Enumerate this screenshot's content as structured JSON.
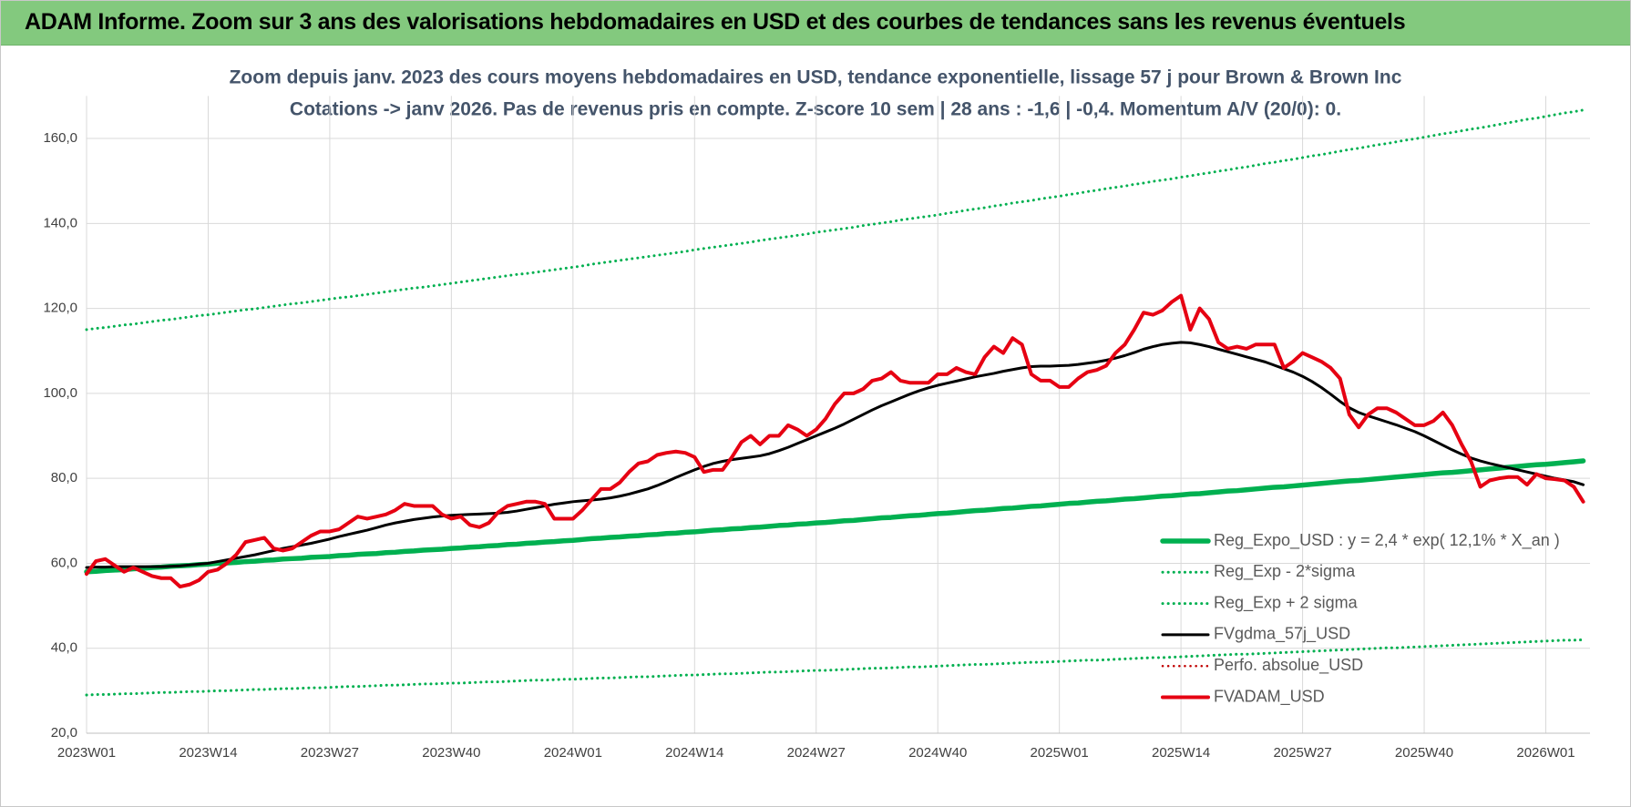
{
  "header": {
    "title": "ADAM Informe. Zoom sur 3 ans des valorisations hebdomadaires en USD et des courbes de tendances sans les revenus éventuels"
  },
  "chart_data": {
    "type": "line",
    "title": "Zoom depuis janv. 2023 des cours moyens hebdomadaires en USD, tendance exponentielle, lissage 57 j pour Brown & Brown Inc",
    "subtitle": "Cotations -> janv 2026. Pas de revenus pris en compte. Z-score 10 sem | 28 ans : -1,6 | -0,4. Momentum A/V (20/0): 0.",
    "categories": [
      "2023W01",
      null,
      null,
      null,
      null,
      null,
      null,
      null,
      null,
      null,
      null,
      null,
      null,
      "2023W14",
      null,
      null,
      null,
      null,
      null,
      null,
      null,
      null,
      null,
      null,
      null,
      null,
      "2023W27",
      null,
      null,
      null,
      null,
      null,
      null,
      null,
      null,
      null,
      null,
      null,
      null,
      "2023W40",
      null,
      null,
      null,
      null,
      null,
      null,
      null,
      null,
      null,
      null,
      null,
      null,
      "2024W01",
      null,
      null,
      null,
      null,
      null,
      null,
      null,
      null,
      null,
      null,
      null,
      null,
      "2024W14",
      null,
      null,
      null,
      null,
      null,
      null,
      null,
      null,
      null,
      null,
      null,
      null,
      "2024W27",
      null,
      null,
      null,
      null,
      null,
      null,
      null,
      null,
      null,
      null,
      null,
      null,
      "2024W40",
      null,
      null,
      null,
      null,
      null,
      null,
      null,
      null,
      null,
      null,
      null,
      null,
      "2025W01",
      null,
      null,
      null,
      null,
      null,
      null,
      null,
      null,
      null,
      null,
      null,
      null,
      "2025W14",
      null,
      null,
      null,
      null,
      null,
      null,
      null,
      null,
      null,
      null,
      null,
      null,
      "2025W27",
      null,
      null,
      null,
      null,
      null,
      null,
      null,
      null,
      null,
      null,
      null,
      null,
      "2025W40",
      null,
      null,
      null,
      null,
      null,
      null,
      null,
      null,
      null,
      null,
      null,
      null,
      "2026W01",
      null,
      null,
      null,
      null
    ],
    "ylim": [
      20,
      170
    ],
    "yticks": [
      {
        "value": 20,
        "label": "20,0"
      },
      {
        "value": 40,
        "label": "40,0"
      },
      {
        "value": 60,
        "label": "60,0"
      },
      {
        "value": 80,
        "label": "80,0"
      },
      {
        "value": 100,
        "label": "100,0"
      },
      {
        "value": 120,
        "label": "120,0"
      },
      {
        "value": 140,
        "label": "140,0"
      },
      {
        "value": 160,
        "label": "160,0"
      }
    ],
    "grid": true,
    "legend": "lower right",
    "series": [
      {
        "name": "Reg_Expo_USD : y = 2,4 * exp( 12,1% *  X_an )",
        "color": "#00b050",
        "line_style": "solid",
        "values": [
          58.0,
          58.1,
          58.3,
          58.4,
          58.5,
          58.7,
          58.8,
          59.0,
          59.1,
          59.3,
          59.4,
          59.5,
          59.7,
          59.8,
          60.0,
          60.1,
          60.2,
          60.4,
          60.5,
          60.7,
          60.8,
          61.0,
          61.1,
          61.2,
          61.4,
          61.5,
          61.6,
          61.8,
          61.9,
          62.1,
          62.2,
          62.3,
          62.5,
          62.6,
          62.8,
          62.9,
          63.1,
          63.2,
          63.3,
          63.5,
          63.6,
          63.8,
          63.9,
          64.1,
          64.2,
          64.4,
          64.5,
          64.7,
          64.8,
          65.0,
          65.1,
          65.3,
          65.4,
          65.6,
          65.8,
          65.9,
          66.1,
          66.2,
          66.4,
          66.5,
          66.7,
          66.8,
          67.0,
          67.1,
          67.3,
          67.4,
          67.6,
          67.8,
          67.9,
          68.1,
          68.2,
          68.4,
          68.5,
          68.7,
          68.9,
          69.0,
          69.2,
          69.3,
          69.5,
          69.6,
          69.8,
          70.0,
          70.1,
          70.3,
          70.5,
          70.7,
          70.8,
          71.0,
          71.2,
          71.3,
          71.5,
          71.7,
          71.8,
          72.0,
          72.2,
          72.4,
          72.5,
          72.7,
          72.9,
          73.0,
          73.2,
          73.4,
          73.5,
          73.7,
          73.9,
          74.1,
          74.2,
          74.4,
          74.6,
          74.7,
          74.9,
          75.1,
          75.2,
          75.4,
          75.6,
          75.8,
          75.9,
          76.1,
          76.3,
          76.4,
          76.6,
          76.8,
          77.0,
          77.1,
          77.3,
          77.5,
          77.7,
          77.9,
          78.0,
          78.2,
          78.4,
          78.6,
          78.8,
          79.0,
          79.2,
          79.4,
          79.5,
          79.7,
          79.9,
          80.1,
          80.3,
          80.5,
          80.7,
          80.9,
          81.1,
          81.3,
          81.4,
          81.6,
          81.8,
          82.0,
          82.2,
          82.4,
          82.6,
          82.8,
          83.0,
          83.2,
          83.3,
          83.5,
          83.7,
          83.9,
          84.1
        ]
      },
      {
        "name": "Reg_Exp - 2*sigma",
        "color": "#00b050",
        "line_style": "dotted",
        "values": [
          29.0,
          29.1,
          29.1,
          29.2,
          29.3,
          29.3,
          29.4,
          29.5,
          29.6,
          29.6,
          29.7,
          29.8,
          29.8,
          29.9,
          30.0,
          30.0,
          30.1,
          30.2,
          30.3,
          30.3,
          30.4,
          30.5,
          30.5,
          30.6,
          30.7,
          30.7,
          30.8,
          30.9,
          31.0,
          31.0,
          31.1,
          31.2,
          31.3,
          31.3,
          31.4,
          31.5,
          31.6,
          31.6,
          31.7,
          31.8,
          31.8,
          31.9,
          32.0,
          32.1,
          32.1,
          32.2,
          32.3,
          32.4,
          32.5,
          32.5,
          32.6,
          32.7,
          32.7,
          32.8,
          32.9,
          33.0,
          33.0,
          33.1,
          33.2,
          33.3,
          33.3,
          33.4,
          33.5,
          33.6,
          33.7,
          33.7,
          33.8,
          33.9,
          34.0,
          34.0,
          34.1,
          34.2,
          34.3,
          34.4,
          34.4,
          34.5,
          34.6,
          34.7,
          34.8,
          34.8,
          34.9,
          35.0,
          35.1,
          35.2,
          35.3,
          35.3,
          35.4,
          35.5,
          35.6,
          35.6,
          35.7,
          35.8,
          35.9,
          36.0,
          36.1,
          36.2,
          36.2,
          36.3,
          36.4,
          36.5,
          36.6,
          36.7,
          36.7,
          36.8,
          36.9,
          37.0,
          37.1,
          37.2,
          37.2,
          37.3,
          37.4,
          37.5,
          37.6,
          37.7,
          37.8,
          37.8,
          37.9,
          38.0,
          38.1,
          38.2,
          38.3,
          38.4,
          38.5,
          38.6,
          38.6,
          38.7,
          38.8,
          38.9,
          39.0,
          39.1,
          39.2,
          39.3,
          39.4,
          39.5,
          39.6,
          39.7,
          39.8,
          39.9,
          40.0,
          40.1,
          40.1,
          40.2,
          40.3,
          40.4,
          40.5,
          40.6,
          40.7,
          40.8,
          40.9,
          41.0,
          41.1,
          41.2,
          41.3,
          41.4,
          41.5,
          41.6,
          41.7,
          41.8,
          41.9,
          41.9,
          42.0
        ]
      },
      {
        "name": "Reg_Exp + 2 sigma",
        "color": "#00b050",
        "line_style": "dotted",
        "values": [
          115.0,
          115.3,
          115.5,
          115.8,
          116.1,
          116.3,
          116.6,
          116.9,
          117.2,
          117.4,
          117.7,
          118.0,
          118.3,
          118.5,
          118.8,
          119.1,
          119.4,
          119.7,
          119.9,
          120.2,
          120.5,
          120.8,
          121.1,
          121.3,
          121.6,
          121.9,
          122.2,
          122.5,
          122.7,
          123.0,
          123.3,
          123.6,
          123.9,
          124.2,
          124.5,
          124.8,
          125.0,
          125.3,
          125.6,
          125.9,
          126.2,
          126.5,
          126.8,
          127.1,
          127.4,
          127.7,
          128.0,
          128.2,
          128.5,
          128.8,
          129.1,
          129.4,
          129.7,
          130.0,
          130.4,
          130.7,
          131.0,
          131.3,
          131.6,
          131.9,
          132.2,
          132.5,
          132.8,
          133.1,
          133.4,
          133.8,
          134.1,
          134.4,
          134.7,
          135.0,
          135.3,
          135.6,
          136.0,
          136.3,
          136.6,
          136.9,
          137.2,
          137.5,
          137.9,
          138.2,
          138.5,
          138.8,
          139.1,
          139.5,
          139.8,
          140.1,
          140.4,
          140.8,
          141.1,
          141.4,
          141.7,
          142.0,
          142.4,
          142.7,
          143.1,
          143.4,
          143.7,
          144.1,
          144.4,
          144.8,
          145.1,
          145.4,
          145.8,
          146.1,
          146.4,
          146.8,
          147.1,
          147.5,
          147.8,
          148.2,
          148.5,
          148.8,
          149.2,
          149.5,
          149.9,
          150.2,
          150.5,
          150.9,
          151.2,
          151.6,
          151.9,
          152.3,
          152.6,
          153.0,
          153.3,
          153.7,
          154.1,
          154.4,
          154.8,
          155.1,
          155.5,
          155.9,
          156.2,
          156.6,
          157.0,
          157.4,
          157.7,
          158.1,
          158.5,
          158.8,
          159.2,
          159.6,
          159.9,
          160.3,
          160.7,
          161.1,
          161.4,
          161.8,
          162.2,
          162.5,
          162.9,
          163.3,
          163.7,
          164.1,
          164.5,
          164.8,
          165.2,
          165.6,
          166.0,
          166.3,
          166.7
        ]
      },
      {
        "name": "FVgdma_57j_USD",
        "color": "#000000",
        "line_style": "solid",
        "values": [
          59.0,
          59.1,
          59.1,
          59.2,
          59.2,
          59.2,
          59.2,
          59.2,
          59.2,
          59.3,
          59.4,
          59.6,
          59.8,
          60.0,
          60.4,
          60.8,
          61.2,
          61.6,
          62.0,
          62.5,
          63.0,
          63.5,
          63.9,
          64.3,
          64.7,
          65.2,
          65.7,
          66.3,
          66.8,
          67.3,
          67.8,
          68.4,
          69.0,
          69.5,
          69.9,
          70.3,
          70.6,
          70.9,
          71.1,
          71.3,
          71.4,
          71.5,
          71.6,
          71.7,
          71.8,
          72.0,
          72.3,
          72.7,
          73.1,
          73.5,
          73.9,
          74.2,
          74.5,
          74.7,
          74.9,
          75.1,
          75.4,
          75.8,
          76.3,
          76.9,
          77.5,
          78.3,
          79.2,
          80.2,
          81.1,
          82.0,
          82.8,
          83.5,
          84.0,
          84.4,
          84.7,
          85.0,
          85.3,
          85.8,
          86.5,
          87.3,
          88.2,
          89.1,
          90.0,
          90.9,
          91.8,
          92.8,
          93.9,
          95.0,
          96.1,
          97.1,
          98.0,
          98.9,
          99.8,
          100.6,
          101.3,
          101.9,
          102.4,
          102.9,
          103.4,
          103.9,
          104.3,
          104.7,
          105.2,
          105.6,
          106.0,
          106.3,
          106.4,
          106.4,
          106.5,
          106.6,
          106.8,
          107.1,
          107.4,
          107.8,
          108.3,
          108.9,
          109.6,
          110.4,
          111.0,
          111.5,
          111.8,
          112.0,
          111.9,
          111.5,
          111.0,
          110.4,
          109.8,
          109.2,
          108.6,
          108.0,
          107.4,
          106.6,
          105.8,
          105.0,
          104.0,
          102.8,
          101.4,
          99.8,
          98.1,
          96.6,
          95.5,
          94.7,
          94.0,
          93.3,
          92.6,
          91.8,
          91.0,
          90.0,
          88.9,
          87.8,
          86.7,
          85.7,
          84.8,
          84.1,
          83.5,
          83.0,
          82.5,
          82.0,
          81.5,
          81.0,
          80.5,
          80.0,
          79.6,
          79.2,
          78.5
        ]
      },
      {
        "name": "Perfo. absolue_USD",
        "color": "#c00000",
        "line_style": "dotted",
        "values": [
          null,
          null,
          null,
          null,
          null,
          null,
          null,
          null,
          null,
          null,
          null,
          null,
          null,
          null,
          null,
          null,
          null,
          null,
          null,
          null,
          null,
          null,
          null,
          null,
          null,
          null,
          null,
          null,
          null,
          null,
          null,
          null,
          null,
          null,
          null,
          null,
          null,
          null,
          null,
          null,
          null,
          null,
          null,
          null,
          null,
          null,
          null,
          null,
          null,
          null,
          null,
          null,
          null,
          null,
          null,
          null,
          null,
          null,
          null,
          null,
          null,
          null,
          null,
          null,
          null,
          null,
          null,
          null,
          null,
          null,
          null,
          null,
          null,
          null,
          null,
          null,
          null,
          null,
          null,
          null,
          null,
          null,
          null,
          null,
          null,
          null,
          null,
          null,
          null,
          null,
          null,
          null,
          null,
          null,
          null,
          null,
          null,
          null,
          null,
          null,
          null,
          null,
          null,
          null,
          null,
          null,
          null,
          null,
          null,
          null,
          null,
          null,
          null,
          null,
          null,
          null,
          null,
          null,
          null,
          null,
          null,
          null,
          null,
          null,
          null,
          null,
          null,
          null,
          null,
          null,
          null,
          null,
          null,
          null,
          null,
          null,
          null,
          null,
          null,
          null,
          null,
          null,
          null,
          null,
          null,
          null,
          null,
          null,
          null,
          null,
          null,
          null,
          null,
          null,
          null,
          null,
          null,
          null,
          null,
          null,
          null
        ]
      },
      {
        "name": "FVADAM_USD",
        "color": "#e60012",
        "line_style": "solid",
        "values": [
          57.5,
          60.5,
          61,
          59.5,
          58,
          59,
          58,
          57,
          56.5,
          56.5,
          54.5,
          55,
          56,
          58,
          58.5,
          60,
          62,
          65,
          65.5,
          66,
          63.5,
          63,
          63.5,
          65,
          66.5,
          67.5,
          67.5,
          68,
          69.5,
          71,
          70.5,
          71,
          71.5,
          72.5,
          74,
          73.5,
          73.5,
          73.5,
          71.5,
          70.5,
          71,
          69,
          68.5,
          69.5,
          72,
          73.5,
          74,
          74.5,
          74.5,
          74,
          70.5,
          70.5,
          70.5,
          72.5,
          75,
          77.5,
          77.5,
          79,
          81.5,
          83.5,
          84,
          85.5,
          86,
          86.3,
          86,
          85,
          81.5,
          82,
          82,
          85,
          88.5,
          90,
          88,
          90,
          90,
          92.5,
          91.5,
          90,
          91.5,
          94,
          97.5,
          100,
          100,
          101,
          103,
          103.5,
          105,
          103,
          102.5,
          102.5,
          102.5,
          104.5,
          104.5,
          106,
          105,
          104.5,
          108.5,
          111,
          109.5,
          113,
          111.5,
          104.5,
          103,
          103,
          101.5,
          101.5,
          103.5,
          105,
          105.5,
          106.5,
          109.5,
          111.5,
          115,
          119,
          118.5,
          119.5,
          121.5,
          123,
          115,
          120,
          117.5,
          112,
          110.5,
          111,
          110.5,
          111.5,
          111.5,
          111.5,
          106,
          107.5,
          109.5,
          108.5,
          107.5,
          106,
          103.5,
          95,
          92,
          95,
          96.5,
          96.5,
          95.5,
          94,
          92.5,
          92.5,
          93.5,
          95.5,
          92.5,
          88,
          84,
          78,
          79.5,
          80,
          80.3,
          80.3,
          78.5,
          81,
          80,
          79.8,
          79.5,
          78,
          74.5
        ]
      }
    ]
  }
}
